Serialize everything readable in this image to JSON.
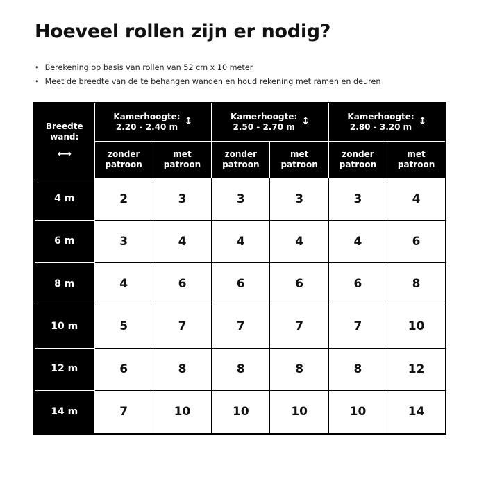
{
  "title": "Hoeveel rollen zijn er nodig?",
  "bullets": [
    "Berekening op basis van rollen van 52 cm x 10 meter",
    "Meet de breedte van de te behangen wanden en houd rekening met ramen en deuren"
  ],
  "table": {
    "corner_label_1": "Breedte",
    "corner_label_2": "wand:",
    "height_label": "Kamerhoogte:",
    "ranges": [
      "2.20 - 2.40 m",
      "2.50 - 2.70 m",
      "2.80 - 3.20 m"
    ],
    "sub": {
      "zonder_1": "zonder",
      "zonder_2": "patroon",
      "met_1": "met",
      "met_2": "patroon"
    },
    "rows": [
      {
        "width": "4 m",
        "values": [
          "2",
          "3",
          "3",
          "3",
          "3",
          "4"
        ]
      },
      {
        "width": "6 m",
        "values": [
          "3",
          "4",
          "4",
          "4",
          "4",
          "6"
        ]
      },
      {
        "width": "8 m",
        "values": [
          "4",
          "6",
          "6",
          "6",
          "6",
          "8"
        ]
      },
      {
        "width": "10 m",
        "values": [
          "5",
          "7",
          "7",
          "7",
          "7",
          "10"
        ]
      },
      {
        "width": "12 m",
        "values": [
          "6",
          "8",
          "8",
          "8",
          "8",
          "12"
        ]
      },
      {
        "width": "14 m",
        "values": [
          "7",
          "10",
          "10",
          "10",
          "10",
          "14"
        ]
      }
    ]
  }
}
